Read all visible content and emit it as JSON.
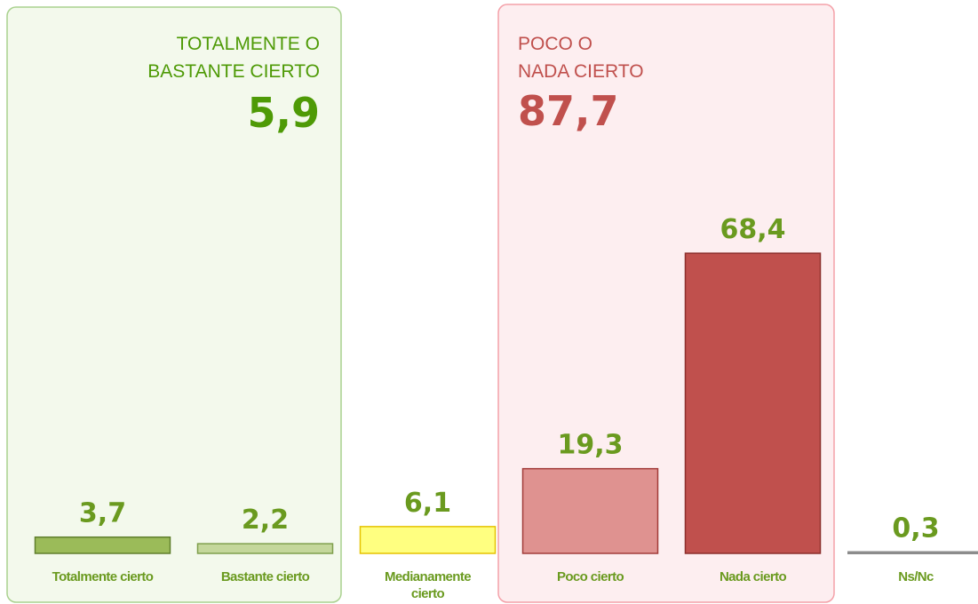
{
  "chart_data": {
    "type": "bar",
    "categories": [
      "Totalmente cierto",
      "Bastante cierto",
      "Medianamente cierto",
      "Poco cierto",
      "Nada cierto",
      "Ns/Nc"
    ],
    "values": [
      3.7,
      2.2,
      6.1,
      19.3,
      68.4,
      0.3
    ],
    "value_labels": [
      "3,7",
      "2,2",
      "6,1",
      "19,3",
      "68,4",
      "0,3"
    ],
    "colors": [
      "#9bbb59",
      "#c4d79b",
      "#ffff80",
      "#df9290",
      "#c0504d",
      "#8c8c8c"
    ],
    "edge_colors": [
      "#5f7f2c",
      "#7f9f4c",
      "#e6c200",
      "#a23c3a",
      "#8c2e2c",
      "#8c8c8c"
    ],
    "ylim": [
      0,
      100
    ],
    "groups": [
      {
        "label": "TOTALMENTE O\nBASTANTE CIERTO",
        "value": 5.9,
        "value_label": "5,9",
        "color": "#4e9a06"
      },
      {
        "label": "POCO O\nNADA CIERTO",
        "value": 87.7,
        "value_label": "87,7",
        "color": "#c0504d"
      }
    ]
  }
}
